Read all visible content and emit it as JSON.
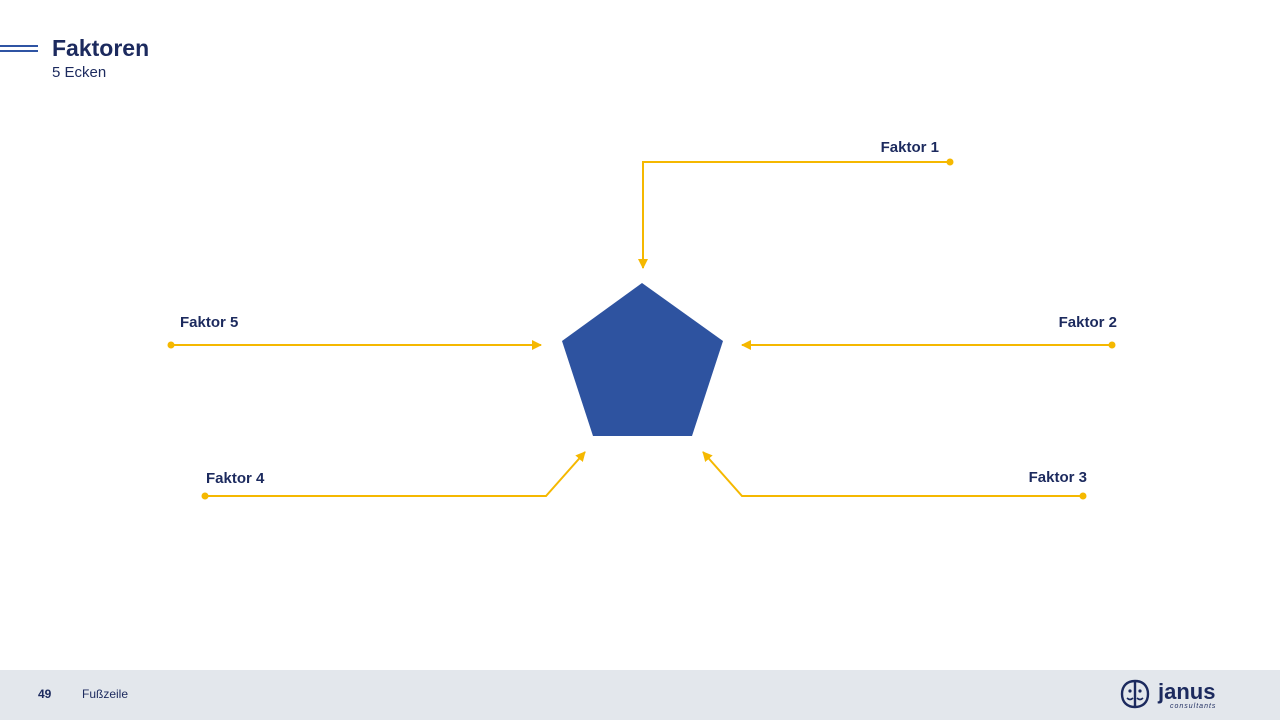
{
  "slide": {
    "title": "Faktoren",
    "subtitle": "5 Ecken"
  },
  "diagram": {
    "center_shape": "pentagon",
    "center_color": "#2e53a0",
    "connector_color": "#f5b800",
    "factors": [
      {
        "label": "Faktor 1"
      },
      {
        "label": "Faktor 2"
      },
      {
        "label": "Faktor 3"
      },
      {
        "label": "Faktor 4"
      },
      {
        "label": "Faktor 5"
      }
    ]
  },
  "footer": {
    "page_number": "49",
    "text": "Fußzeile",
    "logo_icon": "janus-consultants-logo",
    "logo_text": "janus",
    "logo_tagline": "consultants"
  }
}
